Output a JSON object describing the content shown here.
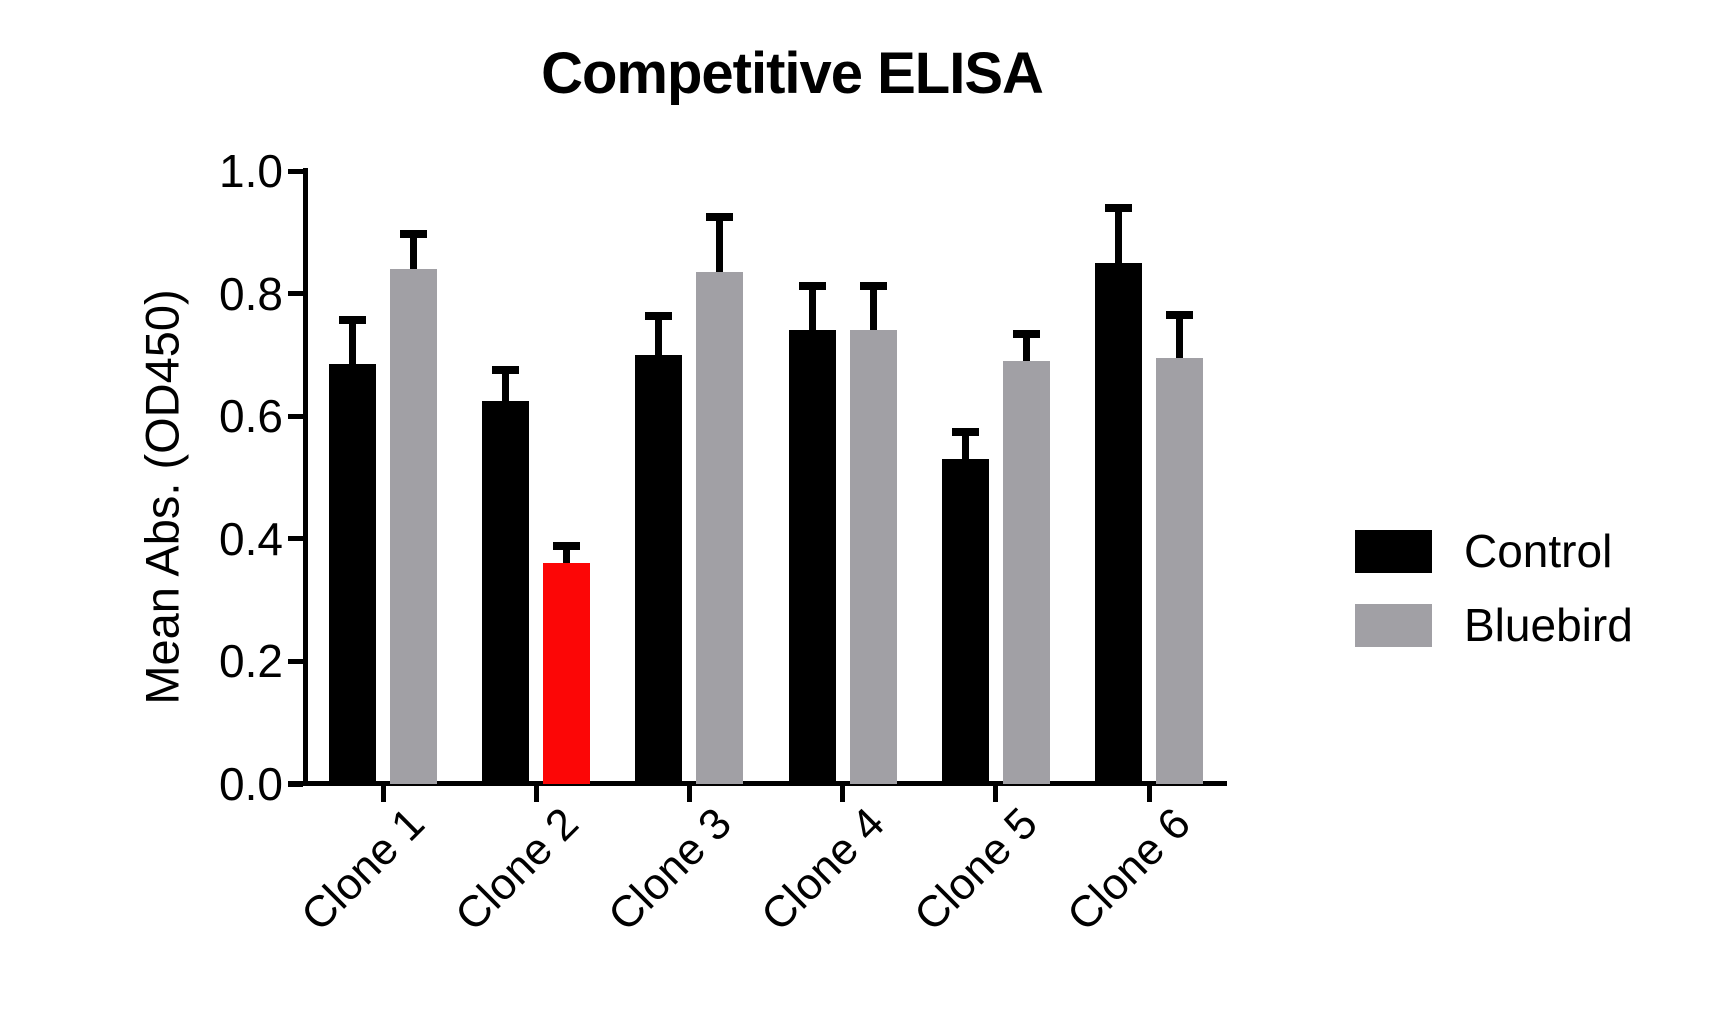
{
  "chart_data": {
    "type": "bar",
    "title": "Competitive ELISA",
    "xlabel": "",
    "ylabel": "Mean Abs. (OD450)",
    "categories": [
      "Clone 1",
      "Clone 2",
      "Clone 3",
      "Clone 4",
      "Clone 5",
      "Clone 6"
    ],
    "series": [
      {
        "name": "Control",
        "color": "#000000",
        "values": [
          0.685,
          0.625,
          0.7,
          0.74,
          0.53,
          0.85
        ],
        "errors": [
          0.072,
          0.05,
          0.063,
          0.072,
          0.044,
          0.09
        ]
      },
      {
        "name": "Bluebird",
        "color": "#a1a0a5",
        "values": [
          0.84,
          0.36,
          0.835,
          0.74,
          0.69,
          0.695
        ],
        "errors": [
          0.058,
          0.029,
          0.09,
          0.072,
          0.044,
          0.07
        ],
        "bar_color_overrides": {
          "1": "#fc0606"
        }
      }
    ],
    "error_bars": "upper-only",
    "ylim": [
      0.0,
      1.0
    ],
    "ytick_step": 0.2,
    "ytick_labels": [
      "0.0",
      "0.2",
      "0.4",
      "0.6",
      "0.8",
      "1.0"
    ],
    "grid": false,
    "legend": {
      "position": "right",
      "entries": [
        {
          "label": "Control",
          "color": "#000000"
        },
        {
          "label": "Bluebird",
          "color": "#a1a0a5"
        }
      ]
    }
  }
}
